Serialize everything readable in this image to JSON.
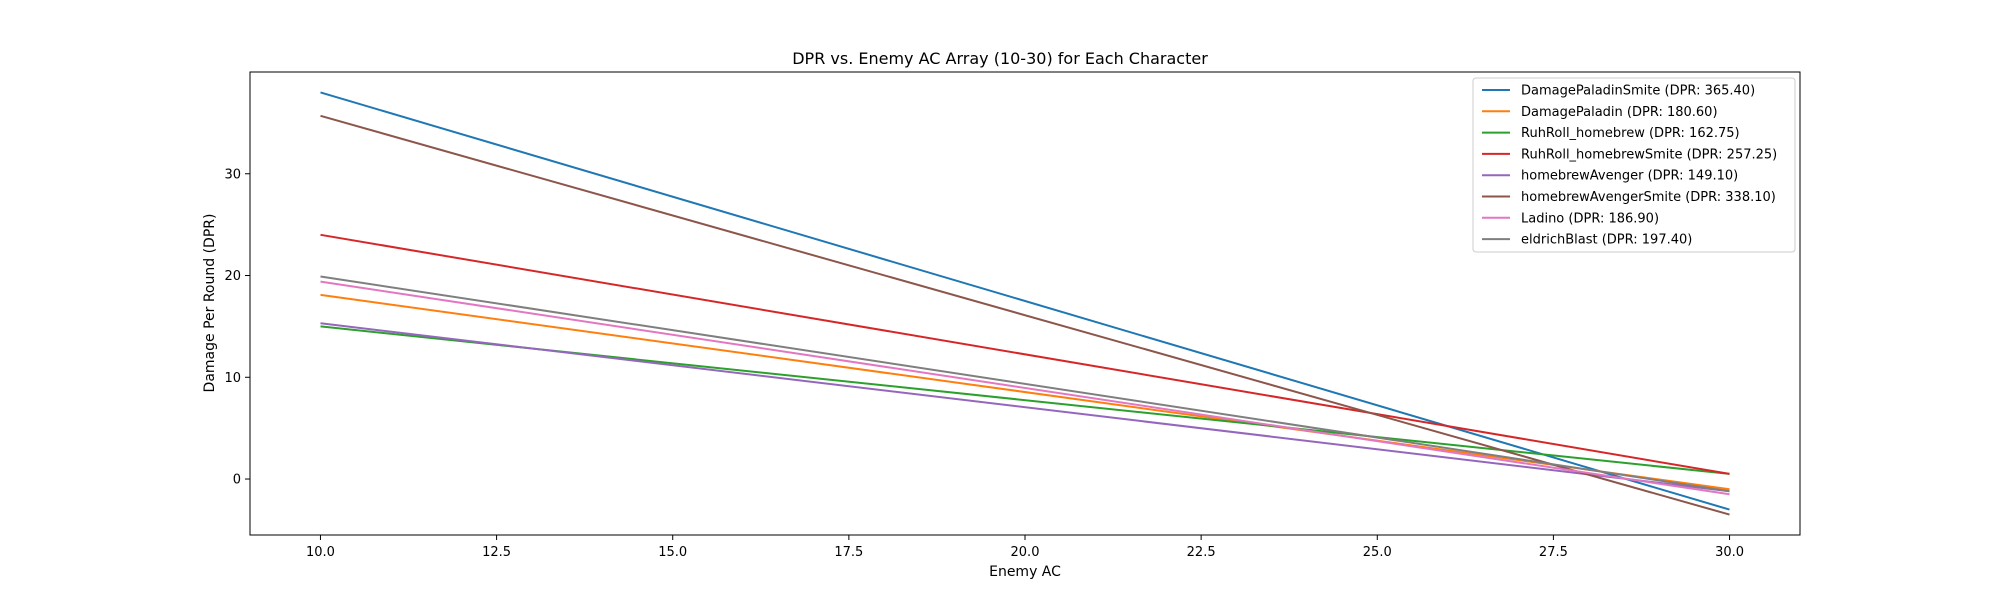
{
  "chart_data": {
    "type": "line",
    "title": "DPR vs. Enemy AC Array (10-30) for Each Character",
    "xlabel": "Enemy AC",
    "ylabel": "Damage Per Round (DPR)",
    "xlim": [
      9,
      31
    ],
    "ylim": [
      -5.5,
      40
    ],
    "xticks": [
      "10.0",
      "12.5",
      "15.0",
      "17.5",
      "20.0",
      "22.5",
      "25.0",
      "27.5",
      "30.0"
    ],
    "yticks": [
      "0",
      "10",
      "20",
      "30"
    ],
    "legend_position": "top-right",
    "grid": false,
    "x": [
      10,
      30
    ],
    "series": [
      {
        "name": "DamagePaladinSmite (DPR: 365.40)",
        "color": "#1f77b4",
        "values": [
          38.0,
          -3.0
        ]
      },
      {
        "name": "DamagePaladin (DPR: 180.60)",
        "color": "#ff7f0e",
        "values": [
          18.1,
          -1.0
        ]
      },
      {
        "name": "RuhRoll_homebrew (DPR: 162.75)",
        "color": "#2ca02c",
        "values": [
          15.0,
          0.5
        ]
      },
      {
        "name": "RuhRoll_homebrewSmite (DPR: 257.25)",
        "color": "#d62728",
        "values": [
          24.0,
          0.5
        ]
      },
      {
        "name": "homebrewAvenger (DPR: 149.10)",
        "color": "#9467bd",
        "values": [
          15.3,
          -1.2
        ]
      },
      {
        "name": "homebrewAvengerSmite (DPR: 338.10)",
        "color": "#8c564b",
        "values": [
          35.7,
          -3.5
        ]
      },
      {
        "name": "Ladino (DPR: 186.90)",
        "color": "#e377c2",
        "values": [
          19.4,
          -1.5
        ]
      },
      {
        "name": "eldrichBlast (DPR: 197.40)",
        "color": "#7f7f7f",
        "values": [
          19.9,
          -1.2
        ]
      }
    ]
  }
}
